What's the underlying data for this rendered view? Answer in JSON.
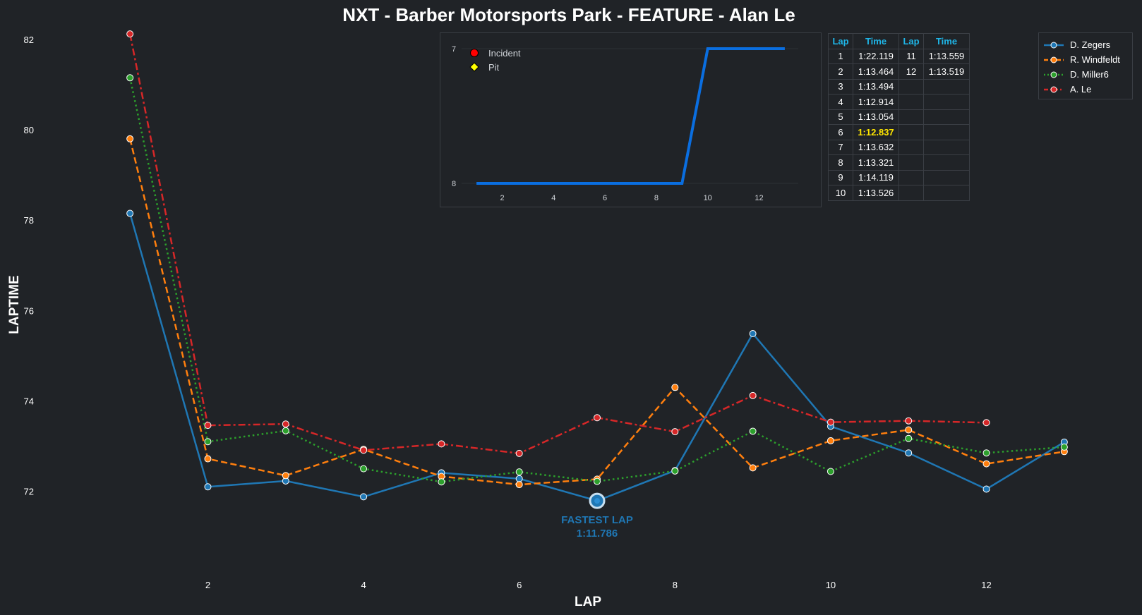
{
  "chart_data": [
    {
      "type": "line",
      "title": "NXT - Barber Motorsports Park - FEATURE - Alan Le",
      "xlabel": "LAP",
      "ylabel": "LAPTIME",
      "xlim": [
        0.5,
        13.5
      ],
      "ylim": [
        70.7,
        82.2
      ],
      "x_ticks": [
        2,
        4,
        6,
        8,
        10,
        12
      ],
      "y_ticks": [
        72,
        74,
        76,
        78,
        80,
        82
      ],
      "grid": false,
      "legend_position": "top-right",
      "series": [
        {
          "name": "D. Zegers",
          "color": "#1f77b4",
          "dash": "solid",
          "x": [
            1,
            2,
            3,
            4,
            5,
            6,
            7,
            8,
            9,
            10,
            11,
            12,
            13
          ],
          "y": [
            78.15,
            72.1,
            72.23,
            71.88,
            72.41,
            72.28,
            71.79,
            72.46,
            75.49,
            73.44,
            72.85,
            72.05,
            73.09
          ]
        },
        {
          "name": "R. Windfeldt",
          "color": "#ff7f0e",
          "dash": "dashed",
          "x": [
            1,
            2,
            3,
            4,
            5,
            6,
            7,
            8,
            9,
            10,
            11,
            12,
            13
          ],
          "y": [
            79.8,
            72.72,
            72.35,
            72.93,
            72.33,
            72.15,
            72.27,
            74.3,
            72.52,
            73.12,
            73.36,
            72.61,
            72.88
          ]
        },
        {
          "name": "D. Miller6",
          "color": "#2ca02c",
          "dash": "dotted",
          "x": [
            1,
            2,
            3,
            4,
            5,
            6,
            7,
            8,
            9,
            10,
            11,
            12,
            13
          ],
          "y": [
            81.15,
            73.1,
            73.34,
            72.5,
            72.21,
            72.43,
            72.22,
            72.45,
            73.33,
            72.44,
            73.17,
            72.85,
            72.98
          ]
        },
        {
          "name": "A. Le",
          "color": "#d62728",
          "dash": "dashdot",
          "x": [
            1,
            2,
            3,
            4,
            5,
            6,
            7,
            8,
            9,
            10,
            11,
            12
          ],
          "y": [
            82.12,
            73.46,
            73.49,
            72.91,
            73.05,
            72.84,
            73.63,
            73.32,
            74.12,
            73.53,
            73.56,
            73.52
          ]
        }
      ],
      "annotation": {
        "x": 7,
        "y": 71.79,
        "line1": "FASTEST LAP",
        "line2": "1:11.786",
        "color": "#1f77b4"
      }
    },
    {
      "type": "line",
      "title": "",
      "x_ticks": [
        2,
        4,
        6,
        8,
        10,
        12
      ],
      "y_ticks": [
        7,
        8
      ],
      "y_inverted": true,
      "xlim": [
        0.2,
        13.8
      ],
      "ylim": [
        8.0,
        7.0
      ],
      "series": [
        {
          "color": "#0a6ee0",
          "x": [
            1,
            2,
            3,
            4,
            5,
            6,
            7,
            8,
            9,
            10,
            11,
            12,
            13
          ],
          "y": [
            8,
            8,
            8,
            8,
            8,
            8,
            8,
            8,
            8,
            7,
            7,
            7,
            7
          ]
        }
      ],
      "legend": [
        {
          "label": "Incident",
          "marker": "circle",
          "color": "#ff0000"
        },
        {
          "label": "Pit",
          "marker": "diamond",
          "color": "#ffff00"
        }
      ]
    },
    {
      "type": "table",
      "headers": [
        "Lap",
        "Time",
        "Lap",
        "Time"
      ],
      "rows": [
        [
          "1",
          "1:22.119",
          "11",
          "1:13.559"
        ],
        [
          "2",
          "1:13.464",
          "12",
          "1:13.519"
        ],
        [
          "3",
          "1:13.494",
          "",
          ""
        ],
        [
          "4",
          "1:12.914",
          "",
          ""
        ],
        [
          "5",
          "1:13.054",
          "",
          ""
        ],
        [
          "6",
          "1:12.837",
          "",
          ""
        ],
        [
          "7",
          "1:13.632",
          "",
          ""
        ],
        [
          "8",
          "1:13.321",
          "",
          ""
        ],
        [
          "9",
          "1:14.119",
          "",
          ""
        ],
        [
          "10",
          "1:13.526",
          "",
          ""
        ]
      ],
      "highlight_row": 5,
      "highlight_color": "#ffe600"
    }
  ]
}
